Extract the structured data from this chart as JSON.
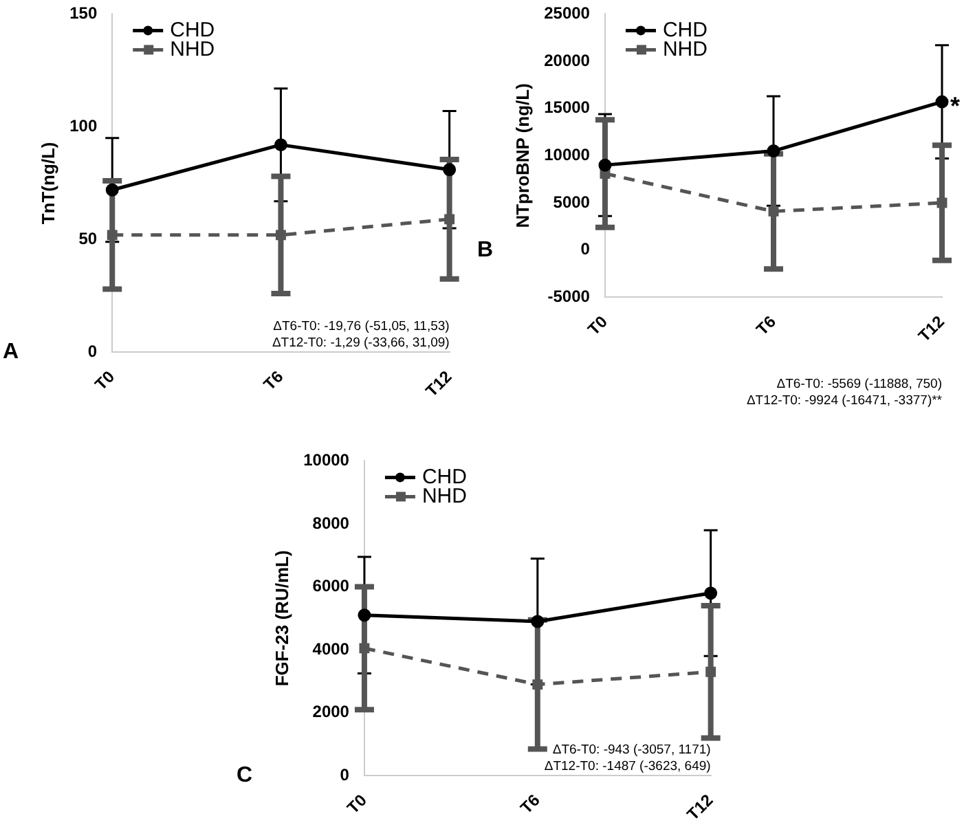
{
  "chart_data": [
    {
      "type": "line",
      "ylabel": "TnT(ng/L)",
      "categories": [
        "T0",
        "T6",
        "T12"
      ],
      "ylim": [
        0,
        150
      ],
      "yticks": [
        0,
        50,
        100,
        150
      ],
      "legend": "top left",
      "grid": false,
      "series": [
        {
          "name": "CHD",
          "color": "#000000",
          "marker": "circle",
          "line_style": "solid",
          "values": [
            72,
            92,
            81
          ],
          "errors": [
            23,
            25,
            26
          ]
        },
        {
          "name": "NHD",
          "color": "#555555",
          "marker": "square",
          "line_style": "dashed",
          "values": [
            52,
            52,
            59
          ],
          "errors": [
            24,
            26,
            26.5
          ]
        }
      ],
      "annotations": [
        "A",
        "ΔT6-T0: -19,76 (-51,05, 11,53)",
        "ΔT12-T0: -1,29 (-33,66, 31,09)"
      ]
    },
    {
      "type": "line",
      "ylabel": "NTproBNP (ng/L)",
      "categories": [
        "T0",
        "T6",
        "T12"
      ],
      "ylim": [
        -5000,
        25000
      ],
      "yticks": [
        -5000,
        0,
        5000,
        10000,
        15000,
        20000,
        25000
      ],
      "legend": "top left",
      "grid": false,
      "series": [
        {
          "name": "CHD",
          "color": "#000000",
          "marker": "circle",
          "line_style": "solid",
          "values": [
            9000,
            10500,
            15700
          ],
          "errors": [
            5400,
            5800,
            6000
          ]
        },
        {
          "name": "NHD",
          "color": "#555555",
          "marker": "square",
          "line_style": "dashed",
          "values": [
            8100,
            4100,
            5000
          ],
          "errors": [
            5700,
            6100,
            6100
          ]
        }
      ],
      "annotations": [
        "B",
        "ΔT6-T0: -5569 (-11888, 750)",
        "ΔT12-T0: -9924 (-16471, -3377)**",
        {
          "text": "*",
          "x": "T12",
          "y": 15700
        }
      ]
    },
    {
      "type": "line",
      "ylabel": "FGF-23 (RU/mL)",
      "categories": [
        "T0",
        "T6",
        "T12"
      ],
      "ylim": [
        0,
        10000
      ],
      "yticks": [
        0,
        2000,
        4000,
        6000,
        8000,
        10000
      ],
      "legend": "top left",
      "grid": false,
      "series": [
        {
          "name": "CHD",
          "color": "#000000",
          "marker": "circle",
          "line_style": "solid",
          "values": [
            5100,
            4900,
            5800
          ],
          "errors": [
            1850,
            2000,
            2000
          ]
        },
        {
          "name": "NHD",
          "color": "#555555",
          "marker": "square",
          "line_style": "dashed",
          "values": [
            4050,
            2900,
            3300
          ],
          "errors": [
            1950,
            2050,
            2100
          ]
        }
      ],
      "annotations": [
        "C",
        "ΔT6-T0: -943 (-3057, 1171)",
        "ΔT12-T0: -1487 (-3623, 649)"
      ]
    }
  ]
}
